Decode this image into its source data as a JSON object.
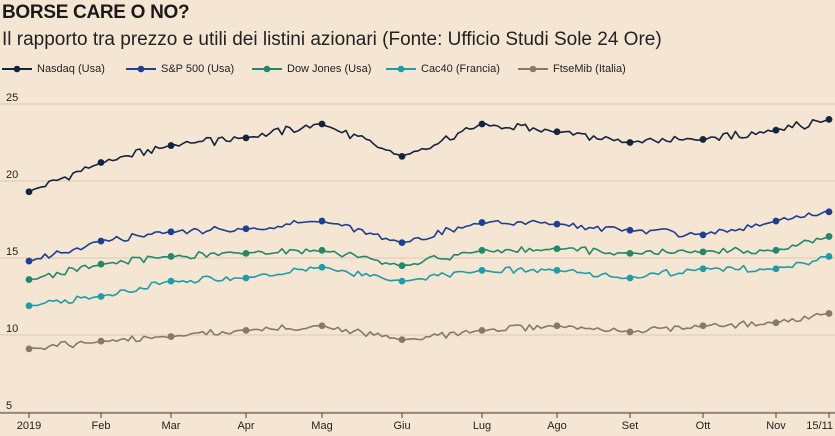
{
  "header": {
    "title": "BORSE CARE O NO?",
    "subtitle": "Il rapporto tra prezzo e utili dei listini azionari (Fonte: Ufficio Studi Sole 24 Ore)"
  },
  "chart_data": {
    "type": "line",
    "title": "BORSE CARE O NO?",
    "subtitle": "Il rapporto tra prezzo e utili dei listini azionari (Fonte: Ufficio Studi Sole 24 Ore)",
    "xlabel": "",
    "ylabel": "",
    "ylim": [
      5,
      25
    ],
    "yticks": [
      5,
      10,
      15,
      20,
      25
    ],
    "xticks": [
      "2019",
      "Feb",
      "Mar",
      "Apr",
      "Mag",
      "Giu",
      "Lug",
      "Ago",
      "Set",
      "Ott",
      "Nov",
      "15/11"
    ],
    "grid": "horizontal",
    "legend_position": "top",
    "x": [
      "2019",
      "Feb",
      "Mar",
      "Apr",
      "Mag",
      "Giu",
      "Lug",
      "Ago",
      "Set",
      "Ott",
      "Nov",
      "15/11"
    ],
    "series": [
      {
        "name": "Nasdaq (Usa)",
        "color": "#14233f",
        "values": [
          19.3,
          21.2,
          22.3,
          22.8,
          23.7,
          21.6,
          23.7,
          23.2,
          22.5,
          22.7,
          23.3,
          24.0
        ]
      },
      {
        "name": "S&P 500 (Usa)",
        "color": "#1d3f8f",
        "values": [
          14.8,
          16.1,
          16.7,
          16.9,
          17.4,
          16.0,
          17.3,
          17.2,
          16.8,
          16.5,
          17.4,
          18.0
        ]
      },
      {
        "name": "Dow Jones (Usa)",
        "color": "#23876b",
        "values": [
          13.6,
          14.6,
          15.1,
          15.3,
          15.5,
          14.5,
          15.5,
          15.6,
          15.3,
          15.4,
          15.5,
          16.4
        ]
      },
      {
        "name": "Cac40 (Francia)",
        "color": "#1e9ca8",
        "values": [
          11.9,
          12.5,
          13.5,
          13.7,
          14.4,
          13.5,
          14.2,
          14.2,
          13.7,
          14.3,
          14.3,
          15.1
        ]
      },
      {
        "name": "FtseMib (Italia)",
        "color": "#8a7766",
        "values": [
          9.1,
          9.6,
          9.9,
          10.3,
          10.6,
          9.7,
          10.3,
          10.6,
          10.2,
          10.6,
          10.8,
          11.4
        ]
      }
    ]
  }
}
